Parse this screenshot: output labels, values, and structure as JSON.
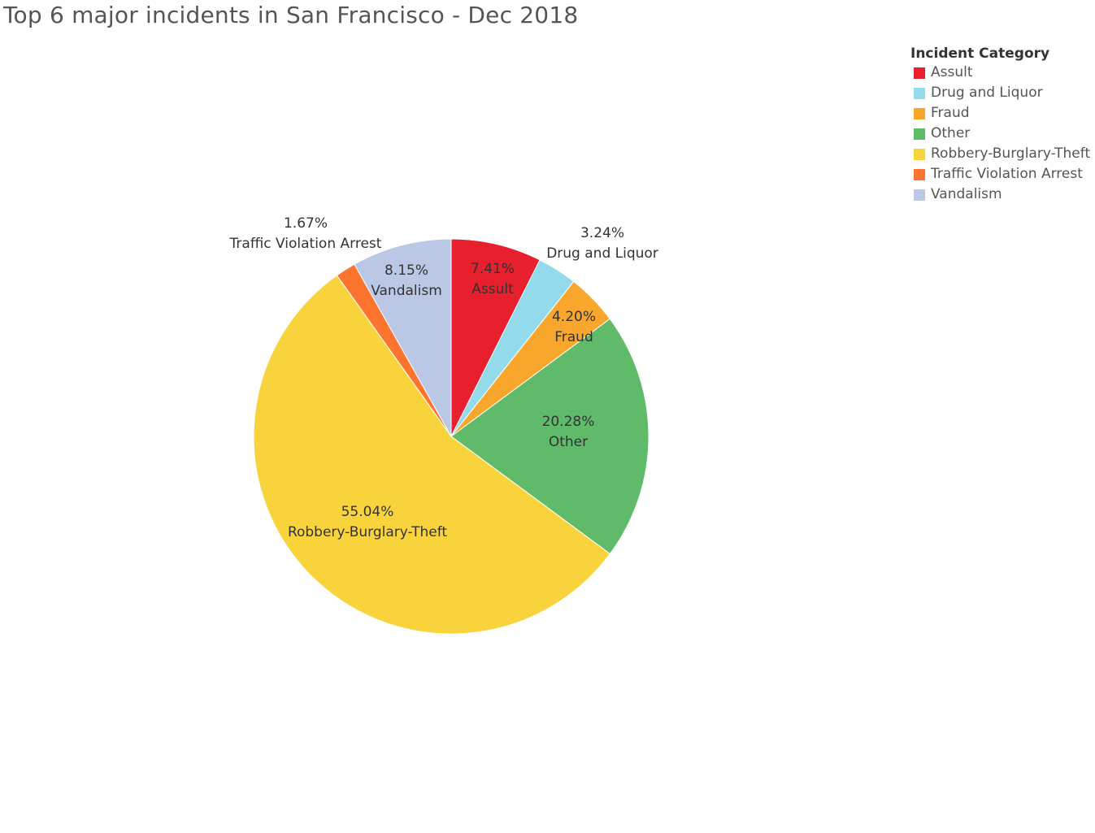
{
  "chart_data": {
    "type": "pie",
    "title": "Top 6 major incidents in San Francisco - Dec 2018",
    "legend_title": "Incident Category",
    "legend_position": "top-right",
    "slices": [
      {
        "label": "Assult",
        "value": 7.41,
        "percent_label": "7.41%",
        "color": "#e81f2d"
      },
      {
        "label": "Drug and Liquor",
        "value": 3.24,
        "percent_label": "3.24%",
        "color": "#93dbeb"
      },
      {
        "label": "Fraud",
        "value": 4.2,
        "percent_label": "4.20%",
        "color": "#f8a62c"
      },
      {
        "label": "Other",
        "value": 20.28,
        "percent_label": "20.28%",
        "color": "#5fbb6a"
      },
      {
        "label": "Robbery-Burglary-Theft",
        "value": 55.04,
        "percent_label": "55.04%",
        "color": "#f9d33c"
      },
      {
        "label": "Traffic Violation Arrest",
        "value": 1.67,
        "percent_label": "1.67%",
        "color": "#fd742f"
      },
      {
        "label": "Vandalism",
        "value": 8.15,
        "percent_label": "8.15%",
        "color": "#bac7e5"
      }
    ]
  }
}
